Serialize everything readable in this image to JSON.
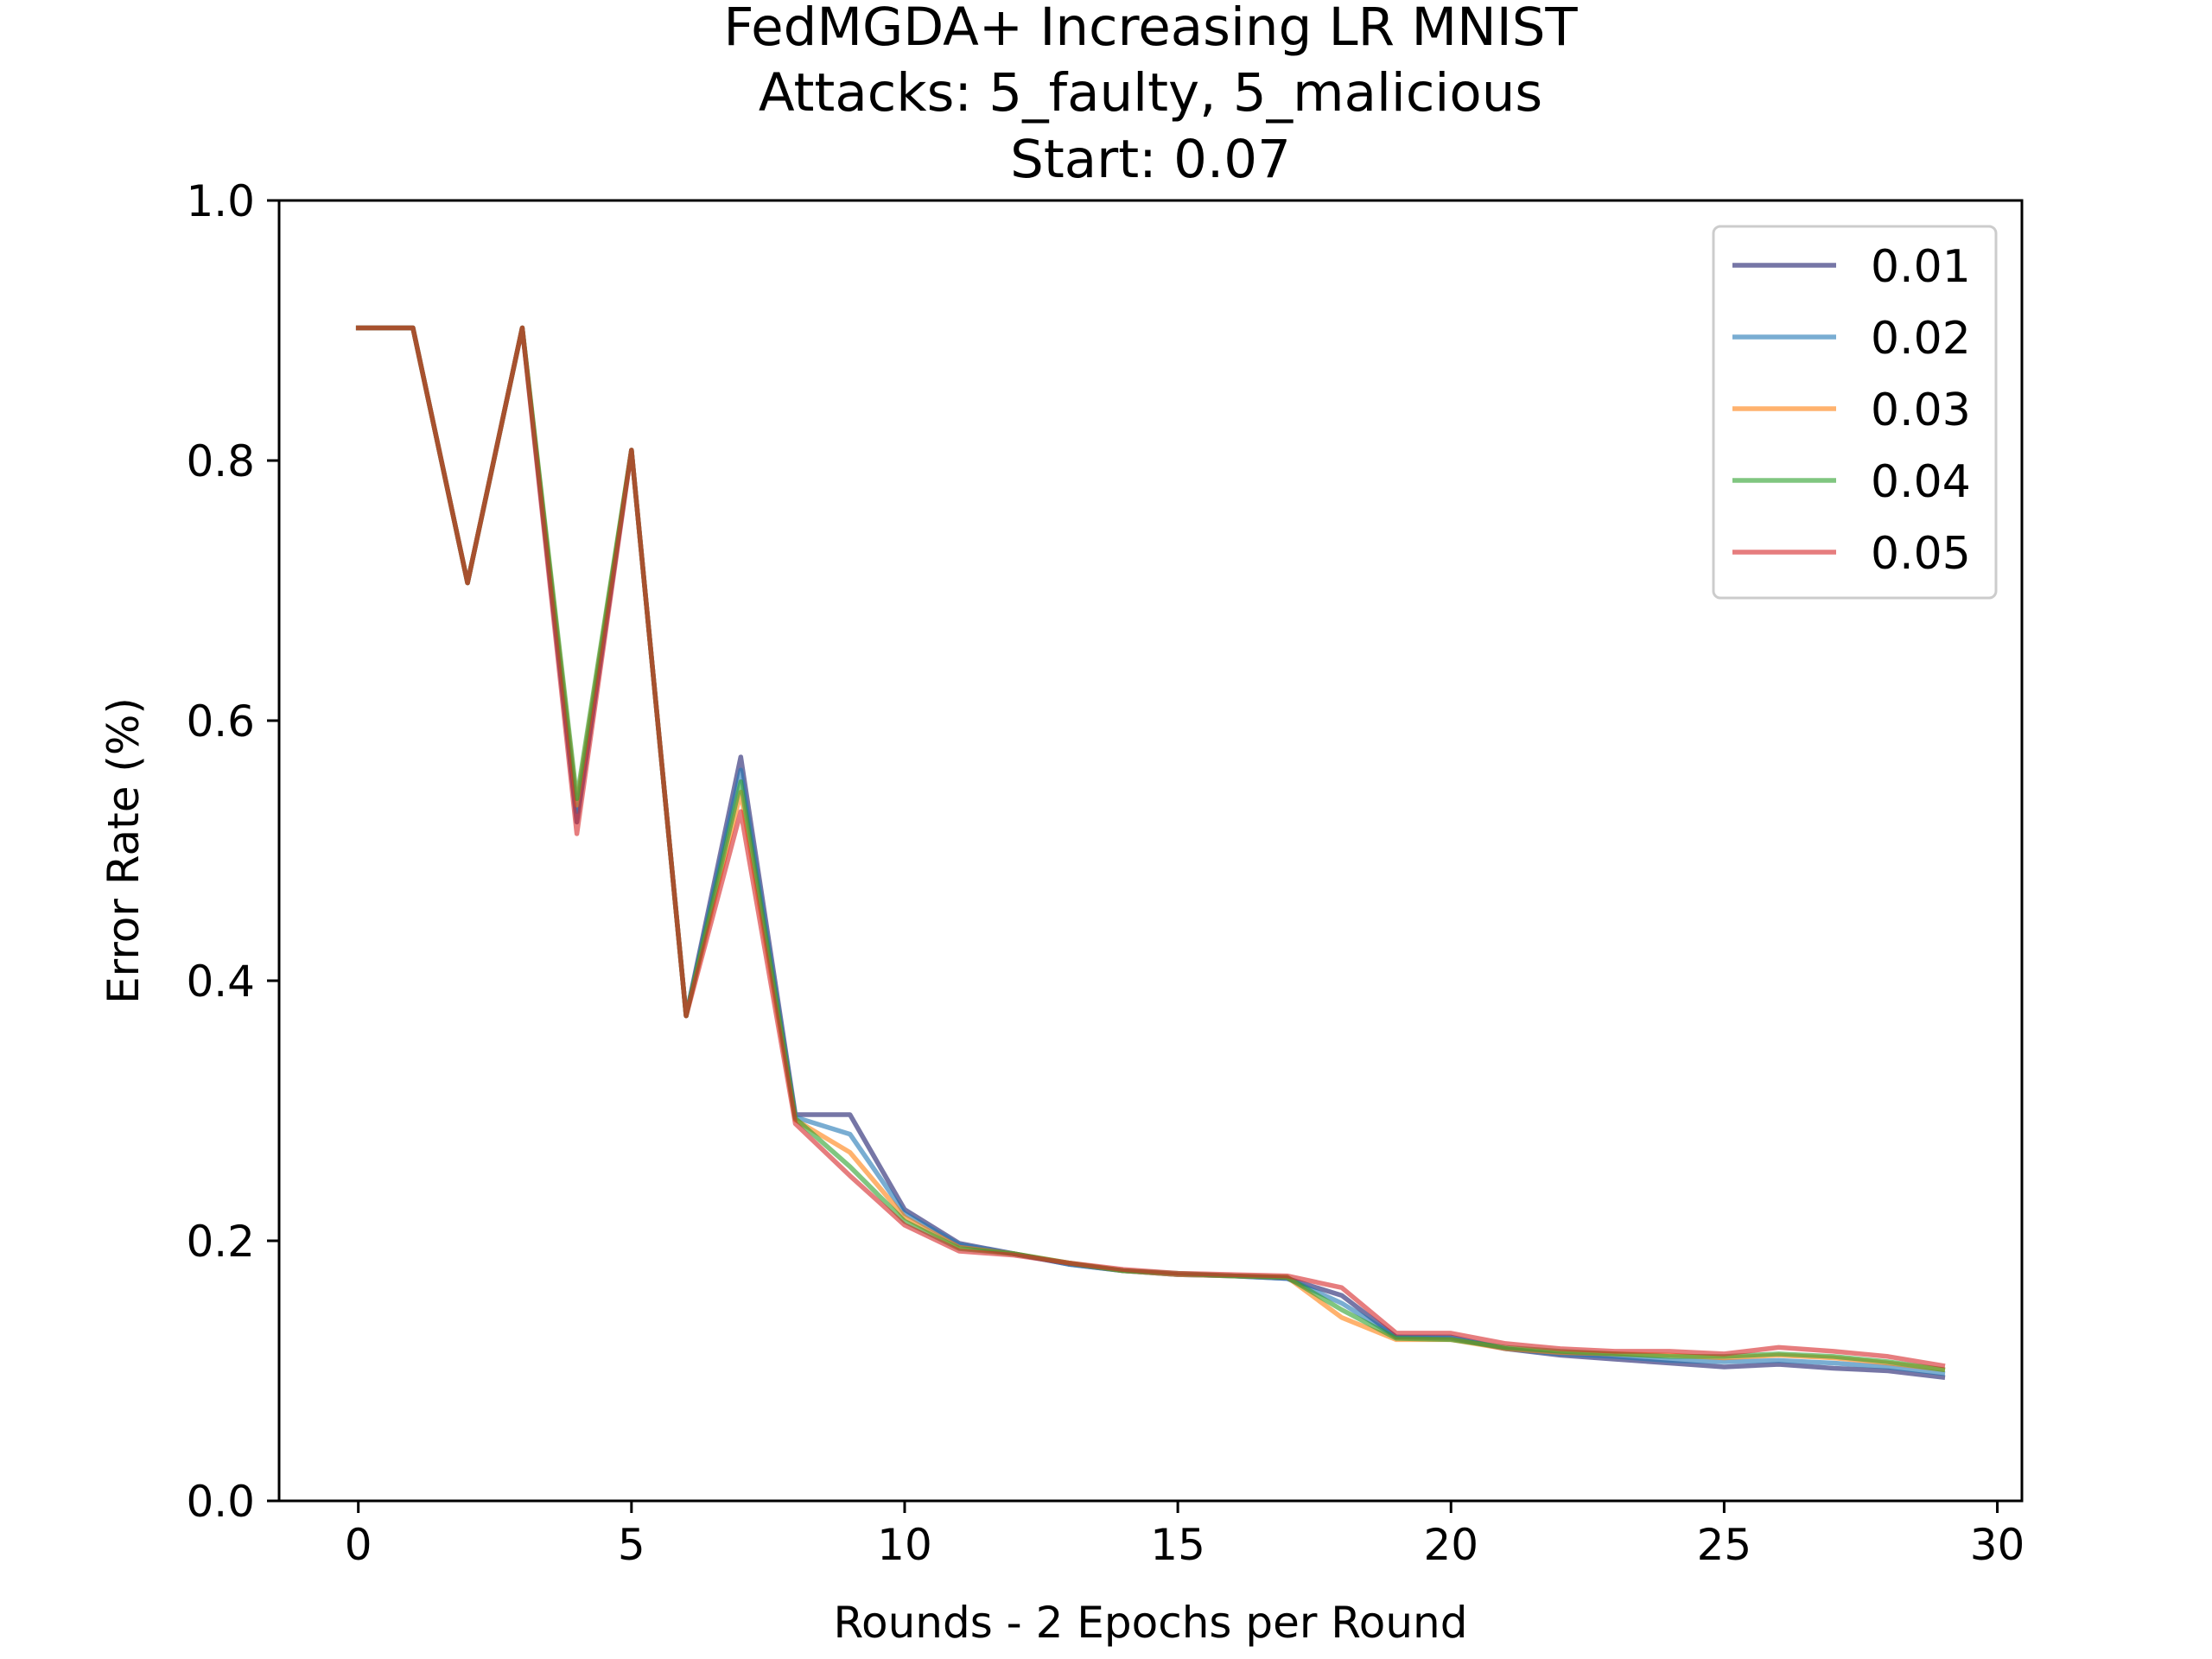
{
  "chart_data": {
    "type": "line",
    "title": [
      "FedMGDA+ Increasing LR MNIST",
      "Attacks: 5_faulty, 5_malicious",
      "Start: 0.07"
    ],
    "xlabel": "Rounds - 2 Epochs per Round",
    "ylabel": "Error Rate (%)",
    "xlim": [
      -1.45,
      30.45
    ],
    "ylim": [
      0.0,
      1.0
    ],
    "xticks": [
      0,
      5,
      10,
      15,
      20,
      25,
      30
    ],
    "yticks": [
      0.0,
      0.2,
      0.4,
      0.6,
      0.8,
      1.0
    ],
    "xtick_labels": [
      "0",
      "5",
      "10",
      "15",
      "20",
      "25",
      "30"
    ],
    "ytick_labels": [
      "0.0",
      "0.2",
      "0.4",
      "0.6",
      "0.8",
      "1.0"
    ],
    "grid": false,
    "legend_position": "top-right",
    "x": [
      0,
      1,
      2,
      3,
      4,
      5,
      6,
      7,
      8,
      9,
      10,
      11,
      12,
      13,
      14,
      15,
      16,
      17,
      18,
      19,
      20,
      21,
      22,
      23,
      24,
      25,
      26,
      27,
      28,
      29
    ],
    "series": [
      {
        "name": "0.01",
        "color": "#1b1b6b",
        "values": [
          0.902,
          0.902,
          0.706,
          0.902,
          0.522,
          0.808,
          0.373,
          0.572,
          0.297,
          0.297,
          0.224,
          0.198,
          0.19,
          0.182,
          0.177,
          0.174,
          0.173,
          0.171,
          0.158,
          0.126,
          0.126,
          0.117,
          0.112,
          0.109,
          0.106,
          0.103,
          0.105,
          0.102,
          0.1,
          0.095
        ]
      },
      {
        "name": "0.02",
        "color": "#1f77b4",
        "values": [
          0.902,
          0.902,
          0.706,
          0.902,
          0.53,
          0.808,
          0.373,
          0.562,
          0.295,
          0.282,
          0.221,
          0.197,
          0.19,
          0.182,
          0.177,
          0.174,
          0.173,
          0.171,
          0.152,
          0.126,
          0.125,
          0.117,
          0.113,
          0.111,
          0.108,
          0.107,
          0.108,
          0.106,
          0.103,
          0.098
        ]
      },
      {
        "name": "0.03",
        "color": "#ff7f0e",
        "values": [
          0.902,
          0.902,
          0.706,
          0.902,
          0.535,
          0.808,
          0.373,
          0.545,
          0.293,
          0.268,
          0.218,
          0.195,
          0.19,
          0.183,
          0.177,
          0.174,
          0.173,
          0.172,
          0.141,
          0.124,
          0.124,
          0.117,
          0.114,
          0.113,
          0.112,
          0.11,
          0.112,
          0.11,
          0.106,
          0.101
        ]
      },
      {
        "name": "0.04",
        "color": "#2ca02c",
        "values": [
          0.902,
          0.902,
          0.706,
          0.902,
          0.54,
          0.808,
          0.373,
          0.553,
          0.294,
          0.257,
          0.215,
          0.194,
          0.19,
          0.183,
          0.177,
          0.175,
          0.173,
          0.172,
          0.147,
          0.125,
          0.124,
          0.118,
          0.115,
          0.113,
          0.111,
          0.111,
          0.113,
          0.111,
          0.107,
          0.101
        ]
      },
      {
        "name": "0.05",
        "color": "#d62728",
        "values": [
          0.902,
          0.902,
          0.706,
          0.902,
          0.513,
          0.808,
          0.373,
          0.53,
          0.29,
          0.25,
          0.212,
          0.192,
          0.189,
          0.183,
          0.178,
          0.175,
          0.174,
          0.173,
          0.164,
          0.129,
          0.129,
          0.121,
          0.117,
          0.115,
          0.115,
          0.113,
          0.118,
          0.115,
          0.111,
          0.104
        ]
      }
    ]
  }
}
